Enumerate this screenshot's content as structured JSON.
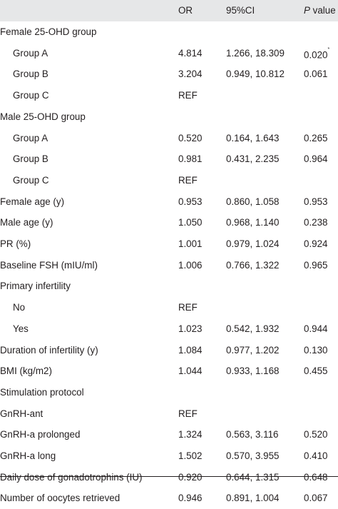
{
  "header": {
    "label": "",
    "or": "OR",
    "ci": "95%CI",
    "p_italic": "P",
    "p_rest": " value"
  },
  "rows": [
    {
      "label": "Female 25-OHD group",
      "indent": false,
      "or": "",
      "ci": "",
      "p": "",
      "mark": ""
    },
    {
      "label": "Group A",
      "indent": true,
      "or": "4.814",
      "ci": "1.266, 18.309",
      "p": "0.020",
      "mark": "*"
    },
    {
      "label": "Group B",
      "indent": true,
      "or": "3.204",
      "ci": "0.949, 10.812",
      "p": "0.061",
      "mark": ""
    },
    {
      "label": "Group C",
      "indent": true,
      "or": "REF",
      "ci": "",
      "p": "",
      "mark": ""
    },
    {
      "label": "Male 25-OHD group",
      "indent": false,
      "or": "",
      "ci": "",
      "p": "",
      "mark": ""
    },
    {
      "label": "Group A",
      "indent": true,
      "or": "0.520",
      "ci": "0.164, 1.643",
      "p": "0.265",
      "mark": ""
    },
    {
      "label": "Group B",
      "indent": true,
      "or": "0.981",
      "ci": "0.431, 2.235",
      "p": "0.964",
      "mark": ""
    },
    {
      "label": "Group C",
      "indent": true,
      "or": "REF",
      "ci": "",
      "p": "",
      "mark": ""
    },
    {
      "label": "Female age (y)",
      "indent": false,
      "or": "0.953",
      "ci": "0.860, 1.058",
      "p": "0.953",
      "mark": ""
    },
    {
      "label": "Male age (y)",
      "indent": false,
      "or": "1.050",
      "ci": "0.968, 1.140",
      "p": "0.238",
      "mark": ""
    },
    {
      "label": "PR (%)",
      "indent": false,
      "or": "1.001",
      "ci": "0.979, 1.024",
      "p": "0.924",
      "mark": ""
    },
    {
      "label": "Baseline FSH (mIU/ml)",
      "indent": false,
      "or": "1.006",
      "ci": "0.766, 1.322",
      "p": "0.965",
      "mark": ""
    },
    {
      "label": "Primary infertility",
      "indent": false,
      "or": "",
      "ci": "",
      "p": "",
      "mark": ""
    },
    {
      "label": "No",
      "indent": true,
      "or": "REF",
      "ci": "",
      "p": "",
      "mark": ""
    },
    {
      "label": "Yes",
      "indent": true,
      "or": "1.023",
      "ci": "0.542, 1.932",
      "p": "0.944",
      "mark": ""
    },
    {
      "label": "Duration of infertility (y)",
      "indent": false,
      "or": "1.084",
      "ci": "0.977, 1.202",
      "p": "0.130",
      "mark": ""
    },
    {
      "label": "BMI (kg/m2)",
      "indent": false,
      "or": "1.044",
      "ci": "0.933, 1.168",
      "p": "0.455",
      "mark": ""
    },
    {
      "label": "Stimulation protocol",
      "indent": false,
      "or": "",
      "ci": "",
      "p": "",
      "mark": ""
    },
    {
      "label": "GnRH-ant",
      "indent": false,
      "or": "REF",
      "ci": "",
      "p": "",
      "mark": ""
    },
    {
      "label": "GnRH-a prolonged",
      "indent": false,
      "or": "1.324",
      "ci": "0.563, 3.116",
      "p": "0.520",
      "mark": ""
    },
    {
      "label": "GnRH-a long",
      "indent": false,
      "or": "1.502",
      "ci": "0.570, 3.955",
      "p": "0.410",
      "mark": ""
    },
    {
      "label": "Daily dose of gonadotrophins (IU)",
      "indent": false,
      "or": "0.920",
      "ci": "0.644, 1.315",
      "p": "0.648",
      "mark": ""
    },
    {
      "label": "Number of oocytes retrieved",
      "indent": false,
      "or": "0.946",
      "ci": "0.891, 1.004",
      "p": "0.067",
      "mark": ""
    }
  ]
}
